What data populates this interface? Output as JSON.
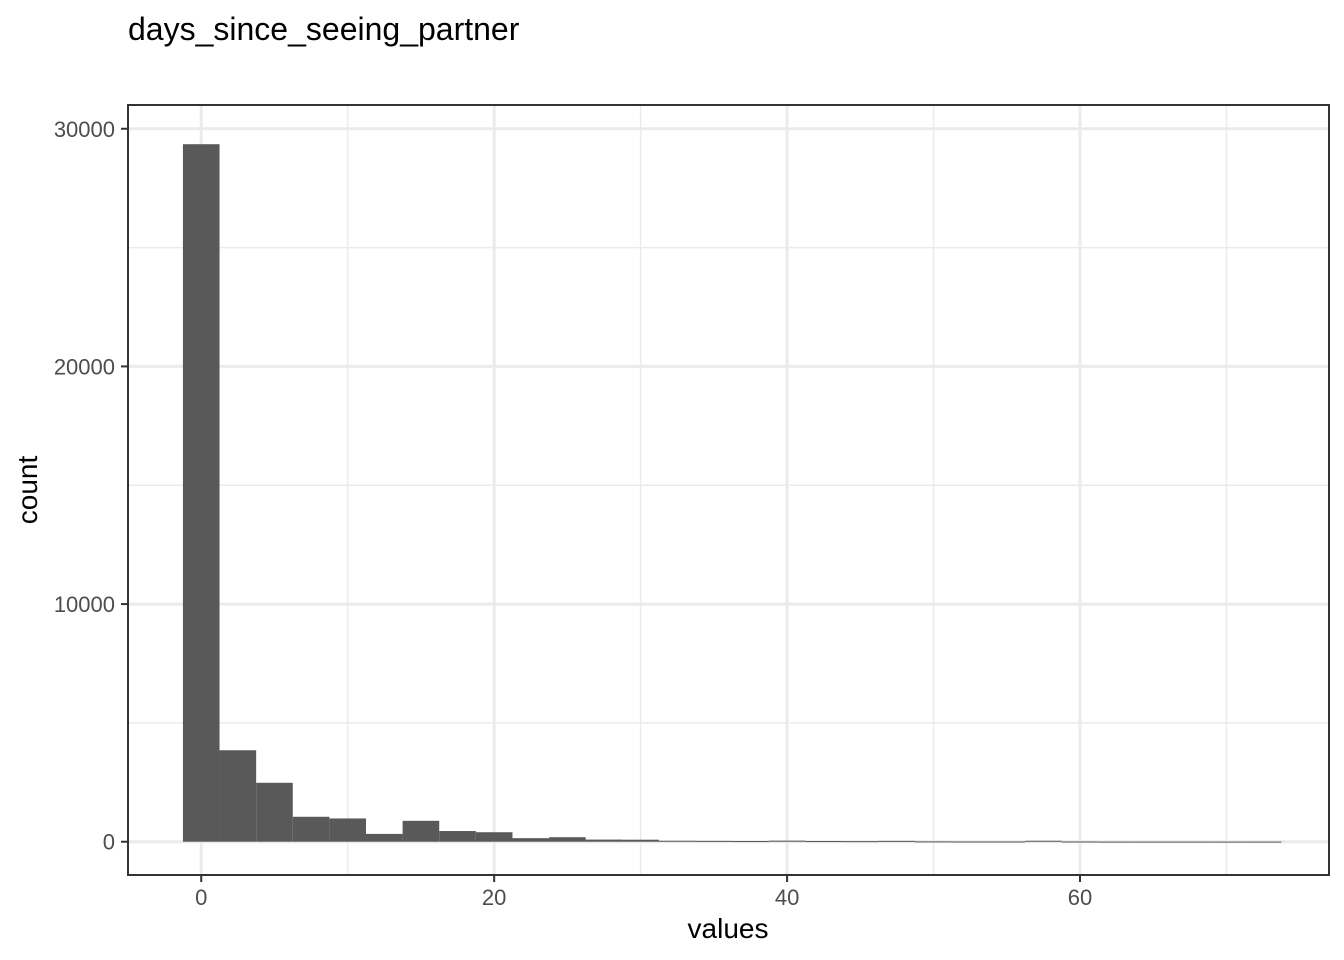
{
  "chart_data": {
    "type": "bar",
    "title": "days_since_seeing_partner",
    "xlabel": "values",
    "ylabel": "count",
    "x_ticks": [
      0,
      20,
      40,
      60
    ],
    "y_ticks": [
      0,
      10000,
      20000,
      30000
    ],
    "xlim": [
      -5,
      77
    ],
    "ylim": [
      -1400,
      31000
    ],
    "grid": true,
    "bar_color": "#595959",
    "bins": [
      {
        "x0": -1.25,
        "x1": 1.25,
        "count": 29350
      },
      {
        "x0": 1.25,
        "x1": 3.75,
        "count": 3850
      },
      {
        "x0": 3.75,
        "x1": 6.25,
        "count": 2480
      },
      {
        "x0": 6.25,
        "x1": 8.75,
        "count": 1050
      },
      {
        "x0": 8.75,
        "x1": 11.25,
        "count": 980
      },
      {
        "x0": 11.25,
        "x1": 13.75,
        "count": 330
      },
      {
        "x0": 13.75,
        "x1": 16.25,
        "count": 880
      },
      {
        "x0": 16.25,
        "x1": 18.75,
        "count": 450
      },
      {
        "x0": 18.75,
        "x1": 21.25,
        "count": 400
      },
      {
        "x0": 21.25,
        "x1": 23.75,
        "count": 150
      },
      {
        "x0": 23.75,
        "x1": 26.25,
        "count": 190
      },
      {
        "x0": 26.25,
        "x1": 28.75,
        "count": 90
      },
      {
        "x0": 28.75,
        "x1": 31.25,
        "count": 85
      },
      {
        "x0": 31.25,
        "x1": 33.75,
        "count": 40
      },
      {
        "x0": 33.75,
        "x1": 36.25,
        "count": 35
      },
      {
        "x0": 36.25,
        "x1": 38.75,
        "count": 30
      },
      {
        "x0": 38.75,
        "x1": 41.25,
        "count": 45
      },
      {
        "x0": 41.25,
        "x1": 43.75,
        "count": 30
      },
      {
        "x0": 43.75,
        "x1": 46.25,
        "count": 25
      },
      {
        "x0": 46.25,
        "x1": 48.75,
        "count": 35
      },
      {
        "x0": 48.75,
        "x1": 51.25,
        "count": 15
      },
      {
        "x0": 51.25,
        "x1": 53.75,
        "count": 10
      },
      {
        "x0": 53.75,
        "x1": 56.25,
        "count": 10
      },
      {
        "x0": 56.25,
        "x1": 58.75,
        "count": 40
      },
      {
        "x0": 58.75,
        "x1": 61.25,
        "count": 10
      },
      {
        "x0": 61.25,
        "x1": 63.75,
        "count": 5
      },
      {
        "x0": 63.75,
        "x1": 66.25,
        "count": 5
      },
      {
        "x0": 66.25,
        "x1": 68.75,
        "count": 5
      },
      {
        "x0": 68.75,
        "x1": 71.25,
        "count": 5
      },
      {
        "x0": 71.25,
        "x1": 73.75,
        "count": 5
      }
    ]
  }
}
